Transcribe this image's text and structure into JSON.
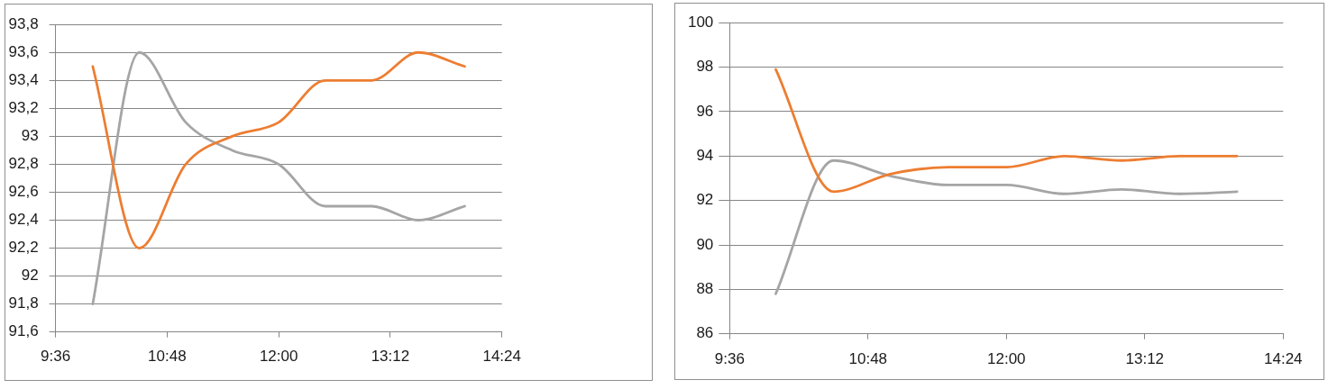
{
  "chart_data": [
    {
      "type": "line",
      "x": [
        10,
        10.5,
        11,
        11.5,
        12,
        12.5,
        13,
        13.5,
        14
      ],
      "series": [
        {
          "color": "#ed7d31",
          "values": [
            93.5,
            92.2,
            92.8,
            93.0,
            93.1,
            93.4,
            93.4,
            93.6,
            93.5
          ]
        },
        {
          "color": "#a5a5a5",
          "values": [
            91.8,
            93.6,
            93.1,
            92.9,
            92.8,
            92.5,
            92.5,
            92.4,
            92.5
          ]
        }
      ],
      "xlim": [
        9.6,
        14.4
      ],
      "xticks": [
        {
          "value": 9.6,
          "label": "9:36"
        },
        {
          "value": 10.8,
          "label": "10:48"
        },
        {
          "value": 12,
          "label": "12:00"
        },
        {
          "value": 13.2,
          "label": "13:12"
        },
        {
          "value": 14.4,
          "label": "14:24"
        }
      ],
      "ylim": [
        91.6,
        93.8
      ],
      "yticks": [
        {
          "value": 91.6,
          "label": "91,6"
        },
        {
          "value": 91.8,
          "label": "91,8"
        },
        92,
        {
          "value": 92.2,
          "label": "92,2"
        },
        {
          "value": 92.4,
          "label": "92,4"
        },
        {
          "value": 92.6,
          "label": "92,6"
        },
        {
          "value": 92.8,
          "label": "92,8"
        },
        93,
        {
          "value": 93.2,
          "label": "93,2"
        },
        {
          "value": 93.4,
          "label": "93,4"
        },
        {
          "value": 93.6,
          "label": "93,6"
        },
        {
          "value": 93.8,
          "label": "93,8"
        }
      ],
      "grid": "y"
    },
    {
      "type": "line",
      "x": [
        10,
        10.5,
        11,
        11.5,
        12,
        12.5,
        13,
        13.5,
        14
      ],
      "series": [
        {
          "color": "#ed7d31",
          "values": [
            97.9,
            92.4,
            93.2,
            93.5,
            93.5,
            94.0,
            93.8,
            94.0,
            94.0
          ]
        },
        {
          "color": "#a5a5a5",
          "values": [
            87.8,
            93.8,
            93.1,
            92.7,
            92.7,
            92.3,
            92.5,
            92.3,
            92.4
          ]
        }
      ],
      "xlim": [
        9.6,
        14.4
      ],
      "xticks": [
        {
          "value": 9.6,
          "label": "9:36"
        },
        {
          "value": 10.8,
          "label": "10:48"
        },
        {
          "value": 12,
          "label": "12:00"
        },
        {
          "value": 13.2,
          "label": "13:12"
        },
        {
          "value": 14.4,
          "label": "14:24"
        }
      ],
      "ylim": [
        86,
        100
      ],
      "yticks": [
        86,
        88,
        90,
        92,
        94,
        96,
        98,
        100
      ],
      "grid": "y"
    }
  ]
}
